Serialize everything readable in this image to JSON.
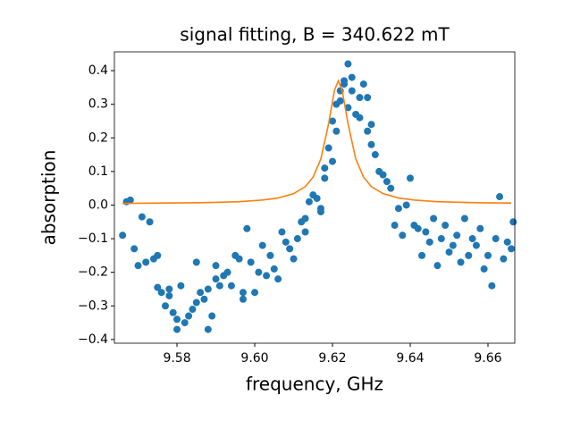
{
  "chart_data": {
    "type": "scatter",
    "title": "signal fitting, B = 340.622 mT",
    "x_label": "frequency, GHz",
    "y_label": "absorption",
    "xlim": [
      9.5639,
      9.6669
    ],
    "ylim": [
      -0.411,
      0.456
    ],
    "xticks": [
      {
        "value": 9.58,
        "label": "9.58"
      },
      {
        "value": 9.6,
        "label": "9.60"
      },
      {
        "value": 9.62,
        "label": "9.62"
      },
      {
        "value": 9.64,
        "label": "9.64"
      },
      {
        "value": 9.66,
        "label": "9.66"
      }
    ],
    "yticks": [
      {
        "value": -0.4,
        "label": "−0.4"
      },
      {
        "value": -0.3,
        "label": "−0.3"
      },
      {
        "value": -0.2,
        "label": "−0.2"
      },
      {
        "value": -0.1,
        "label": "−0.1"
      },
      {
        "value": 0,
        "label": "0.0"
      },
      0.1,
      0.2,
      0.3,
      0.4
    ],
    "series": [
      {
        "type": "scatter",
        "color": "#1f77b4",
        "x": [
          9.566,
          9.567,
          9.568,
          9.569,
          9.57,
          9.571,
          9.572,
          9.573,
          9.574,
          9.575,
          9.575,
          9.576,
          9.577,
          9.578,
          9.578,
          9.579,
          9.58,
          9.58,
          9.581,
          9.582,
          9.583,
          9.584,
          9.585,
          9.585,
          9.586,
          9.587,
          9.588,
          9.588,
          9.589,
          9.59,
          9.59,
          9.591,
          9.592,
          9.593,
          9.594,
          9.595,
          9.596,
          9.597,
          9.597,
          9.598,
          9.599,
          9.6,
          9.601,
          9.602,
          9.603,
          9.604,
          9.605,
          9.606,
          9.607,
          9.608,
          9.609,
          9.61,
          9.611,
          9.612,
          9.613,
          9.613,
          9.614,
          9.615,
          9.616,
          9.617,
          9.617,
          9.618,
          9.618,
          9.619,
          9.62,
          9.62,
          9.621,
          9.621,
          9.622,
          9.622,
          9.623,
          9.623,
          9.624,
          9.624,
          9.625,
          9.625,
          9.626,
          9.627,
          9.627,
          9.628,
          9.629,
          9.629,
          9.63,
          9.63,
          9.631,
          9.632,
          9.633,
          9.634,
          9.635,
          9.636,
          9.637,
          9.638,
          9.639,
          9.64,
          9.641,
          9.642,
          9.643,
          9.644,
          9.645,
          9.646,
          9.647,
          9.648,
          9.649,
          9.65,
          9.651,
          9.652,
          9.653,
          9.654,
          9.655,
          9.656,
          9.657,
          9.658,
          9.659,
          9.66,
          9.661,
          9.662,
          9.663,
          9.664,
          9.665,
          9.666,
          9.6665
        ],
        "values": [
          -0.09,
          0.01,
          0.015,
          -0.13,
          -0.18,
          -0.035,
          -0.17,
          -0.05,
          -0.16,
          -0.15,
          -0.245,
          -0.26,
          -0.3,
          -0.25,
          -0.27,
          -0.32,
          -0.37,
          -0.34,
          -0.24,
          -0.35,
          -0.33,
          -0.31,
          -0.29,
          -0.17,
          -0.26,
          -0.28,
          -0.37,
          -0.25,
          -0.33,
          -0.18,
          -0.22,
          -0.24,
          -0.21,
          -0.2,
          -0.24,
          -0.15,
          -0.16,
          -0.26,
          -0.28,
          -0.07,
          -0.17,
          -0.26,
          -0.2,
          -0.12,
          -0.21,
          -0.15,
          -0.19,
          -0.22,
          -0.08,
          -0.11,
          -0.13,
          -0.16,
          -0.1,
          -0.05,
          -0.08,
          -0.04,
          0.01,
          0.03,
          0.02,
          -0.02,
          -0.01,
          0.11,
          0.08,
          0.17,
          0.13,
          0.25,
          0.3,
          0.22,
          0.34,
          0.31,
          0.36,
          0.37,
          0.42,
          0.29,
          0.34,
          0.38,
          0.27,
          0.32,
          0.26,
          0.36,
          0.32,
          0.22,
          0.24,
          0.18,
          0.15,
          0.1,
          0.09,
          0.07,
          0.05,
          -0.06,
          -0.01,
          -0.09,
          0.0,
          0.08,
          -0.06,
          -0.07,
          -0.15,
          -0.08,
          -0.11,
          -0.04,
          -0.18,
          -0.1,
          -0.06,
          -0.14,
          -0.12,
          -0.09,
          -0.17,
          -0.04,
          -0.15,
          -0.1,
          -0.12,
          -0.07,
          -0.19,
          -0.15,
          -0.24,
          -0.1,
          0.025,
          -0.16,
          -0.11,
          -0.13,
          -0.05
        ]
      },
      {
        "type": "line",
        "color": "#ff7f0e",
        "x": [
          9.566,
          9.576,
          9.586,
          9.596,
          9.602,
          9.606,
          9.61,
          9.613,
          9.615,
          9.617,
          9.619,
          9.6205,
          9.6215,
          9.6225,
          9.624,
          9.626,
          9.628,
          9.63,
          9.633,
          9.637,
          9.641,
          9.647,
          9.657,
          9.666
        ],
        "values": [
          0.005,
          0.006,
          0.007,
          0.01,
          0.015,
          0.021,
          0.034,
          0.055,
          0.083,
          0.137,
          0.242,
          0.341,
          0.37,
          0.341,
          0.242,
          0.137,
          0.083,
          0.055,
          0.034,
          0.021,
          0.015,
          0.01,
          0.007,
          0.006
        ]
      }
    ]
  }
}
